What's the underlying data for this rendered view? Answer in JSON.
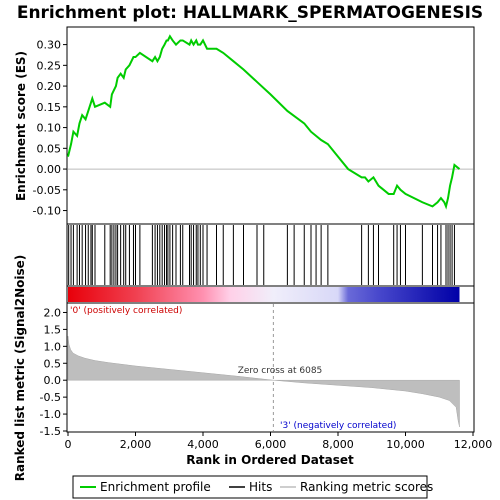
{
  "title": "Enrichment plot: HALLMARK_SPERMATOGENESIS",
  "colors": {
    "profile": "#00cc00",
    "hits": "#000000",
    "metric": "#bebebe",
    "pos_label": "#cc0000",
    "neg_label": "#0000cc",
    "zero_line": "#bbbbbb"
  },
  "chart_data": [
    {
      "type": "line",
      "panel": "enrichment",
      "ylabel": "Enrichment score (ES)",
      "xlim": [
        0,
        12000
      ],
      "ylim": [
        -0.13,
        0.34
      ],
      "yticks": [
        -0.1,
        -0.05,
        0.0,
        0.05,
        0.1,
        0.15,
        0.2,
        0.25,
        0.3
      ],
      "ytick_labels": [
        "-0.10",
        "-0.05",
        "0.00",
        "0.05",
        "0.10",
        "0.15",
        "0.20",
        "0.25",
        "0.30"
      ],
      "series": [
        {
          "name": "Enrichment profile",
          "x": [
            0,
            90,
            160,
            270,
            340,
            420,
            520,
            680,
            720,
            800,
            1090,
            1250,
            1300,
            1360,
            1420,
            1470,
            1560,
            1650,
            1710,
            1820,
            1940,
            2000,
            2130,
            2500,
            2580,
            2650,
            2720,
            2790,
            2860,
            2920,
            2960,
            3020,
            3100,
            3200,
            3330,
            3400,
            3600,
            3650,
            3720,
            3800,
            3850,
            3920,
            4000,
            4120,
            4300,
            4400,
            4600,
            4900,
            5200,
            5600,
            6000,
            6500,
            7000,
            7200,
            7350,
            7500,
            7700,
            8000,
            8300,
            8700,
            8800,
            8900,
            9050,
            9200,
            9500,
            9650,
            9750,
            9850,
            10000,
            10500,
            10800,
            10950,
            11050,
            11150,
            11200,
            11260,
            11320,
            11380,
            11450,
            11600
          ],
          "y": [
            0.03,
            0.06,
            0.09,
            0.08,
            0.11,
            0.13,
            0.12,
            0.16,
            0.17,
            0.15,
            0.16,
            0.15,
            0.18,
            0.19,
            0.2,
            0.22,
            0.23,
            0.22,
            0.24,
            0.25,
            0.27,
            0.27,
            0.28,
            0.26,
            0.27,
            0.26,
            0.27,
            0.29,
            0.3,
            0.31,
            0.31,
            0.32,
            0.31,
            0.3,
            0.31,
            0.31,
            0.3,
            0.31,
            0.3,
            0.31,
            0.3,
            0.3,
            0.31,
            0.29,
            0.29,
            0.29,
            0.28,
            0.26,
            0.24,
            0.21,
            0.18,
            0.14,
            0.11,
            0.09,
            0.08,
            0.07,
            0.06,
            0.03,
            0.0,
            -0.02,
            -0.02,
            -0.03,
            -0.02,
            -0.04,
            -0.06,
            -0.06,
            -0.04,
            -0.05,
            -0.06,
            -0.08,
            -0.09,
            -0.08,
            -0.07,
            -0.08,
            -0.09,
            -0.07,
            -0.04,
            -0.02,
            0.01,
            0.0
          ]
        }
      ],
      "legend": [
        "Enrichment profile",
        "Hits",
        "Ranking metric scores"
      ],
      "legend_placement": "bottom"
    },
    {
      "type": "hits",
      "panel": "hits",
      "name": "Hits",
      "x": [
        20,
        90,
        160,
        270,
        340,
        420,
        520,
        600,
        680,
        720,
        800,
        1090,
        1250,
        1300,
        1360,
        1420,
        1470,
        1560,
        1650,
        1710,
        1820,
        1940,
        2000,
        2130,
        2500,
        2580,
        2650,
        2720,
        2790,
        2860,
        2920,
        2960,
        3020,
        3100,
        3200,
        3330,
        3400,
        3600,
        3650,
        3720,
        3800,
        3850,
        3920,
        4000,
        4120,
        4400,
        4600,
        4900,
        5200,
        5600,
        5800,
        6500,
        6700,
        7000,
        7200,
        7350,
        7500,
        7700,
        8700,
        8900,
        9050,
        9200,
        9650,
        9750,
        9850,
        10000,
        10500,
        10800,
        10950,
        11050,
        11200,
        11260,
        11320,
        11380,
        11450
      ]
    },
    {
      "type": "heatmap",
      "panel": "ranking_bar",
      "x": [
        0,
        2000,
        4000,
        4800,
        6085,
        8000,
        8300,
        9200,
        10900,
        11600
      ],
      "colors": [
        "#e8000a",
        "#f04050",
        "#ff90b0",
        "#ffd0e8",
        "#f0eefa",
        "#d8d8f8",
        "#6a6ad8",
        "#4848cc",
        "#1414b0",
        "#0000a8"
      ]
    },
    {
      "type": "area",
      "panel": "ranked_metric",
      "name": "Ranking metric scores",
      "xlabel": "Rank in Ordered Dataset",
      "ylabel": "Ranked list metric (Signal2Noise)",
      "xlim": [
        0,
        12000
      ],
      "ylim": [
        -1.5,
        2.25
      ],
      "xticks": [
        0,
        2000,
        4000,
        6000,
        8000,
        10000,
        12000
      ],
      "xtick_labels": [
        "0",
        "2,000",
        "4,000",
        "6,000",
        "8,000",
        "10,000",
        "12,000"
      ],
      "yticks": [
        -1.5,
        -1.0,
        -0.5,
        0.0,
        0.5,
        1.0,
        1.5,
        2.0
      ],
      "ytick_labels": [
        "-1.5",
        "-1.0",
        "-0.5",
        "0.0",
        "0.5",
        "1.0",
        "1.5",
        "2.0"
      ],
      "x": [
        0,
        30,
        80,
        150,
        300,
        500,
        800,
        1200,
        2000,
        3000,
        4000,
        5000,
        6085,
        7000,
        8000,
        9000,
        10000,
        10500,
        11000,
        11300,
        11500,
        11560,
        11600
      ],
      "y": [
        1.3,
        1.05,
        0.9,
        0.8,
        0.72,
        0.65,
        0.58,
        0.52,
        0.42,
        0.32,
        0.22,
        0.12,
        0.0,
        -0.08,
        -0.15,
        -0.22,
        -0.32,
        -0.4,
        -0.5,
        -0.6,
        -0.8,
        -1.2,
        -1.38
      ],
      "annotations": {
        "zero_cross": "Zero cross at 6085",
        "zero_cross_x": 6085,
        "positive": "'0' (positively correlated)",
        "negative": "'3' (negatively correlated)"
      }
    }
  ]
}
